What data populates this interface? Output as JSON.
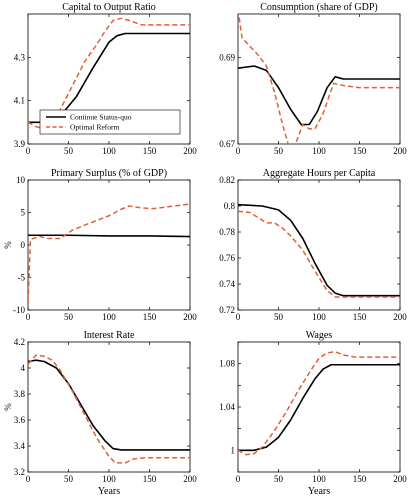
{
  "chart_data": [
    {
      "type": "line",
      "title": "Capital to Output Ratio",
      "xlabel": "",
      "ylabel": "",
      "xlim": [
        0,
        200
      ],
      "ylim": [
        3.9,
        4.5
      ],
      "xticks": [
        0,
        50,
        100,
        150,
        200
      ],
      "yticks": [
        3.9,
        4.1,
        4.3
      ],
      "grid": false,
      "legend": {
        "position": "lower-left",
        "entries": [
          "Continue Status-quo",
          "Optimal Reform"
        ]
      },
      "series": [
        {
          "name": "Continue Status-quo",
          "color": "#000000",
          "style": "solid",
          "points": [
            [
              0,
              4.0
            ],
            [
              20,
              4.0
            ],
            [
              40,
              4.03
            ],
            [
              60,
              4.12
            ],
            [
              80,
              4.25
            ],
            [
              100,
              4.37
            ],
            [
              110,
              4.4
            ],
            [
              120,
              4.41
            ],
            [
              200,
              4.41
            ]
          ]
        },
        {
          "name": "Optimal Reform",
          "color": "#e0603a",
          "style": "dashed",
          "points": [
            [
              0,
              4.0
            ],
            [
              10,
              3.98
            ],
            [
              20,
              3.97
            ],
            [
              30,
              3.99
            ],
            [
              40,
              4.06
            ],
            [
              55,
              4.17
            ],
            [
              70,
              4.28
            ],
            [
              85,
              4.36
            ],
            [
              95,
              4.42
            ],
            [
              105,
              4.47
            ],
            [
              115,
              4.48
            ],
            [
              125,
              4.47
            ],
            [
              140,
              4.45
            ],
            [
              200,
              4.45
            ]
          ]
        }
      ]
    },
    {
      "type": "line",
      "title": "Consumption (share of GDP)",
      "xlabel": "",
      "ylabel": "",
      "xlim": [
        0,
        200
      ],
      "ylim": [
        0.67,
        0.7
      ],
      "xticks": [
        0,
        50,
        100,
        150,
        200
      ],
      "yticks": [
        0.67,
        0.69
      ],
      "grid": false,
      "series": [
        {
          "name": "Continue Status-quo",
          "color": "#000000",
          "style": "solid",
          "points": [
            [
              0,
              0.6875
            ],
            [
              20,
              0.688
            ],
            [
              35,
              0.687
            ],
            [
              50,
              0.683
            ],
            [
              65,
              0.678
            ],
            [
              78,
              0.6745
            ],
            [
              88,
              0.6745
            ],
            [
              98,
              0.6775
            ],
            [
              110,
              0.683
            ],
            [
              120,
              0.6855
            ],
            [
              130,
              0.685
            ],
            [
              145,
              0.685
            ],
            [
              200,
              0.685
            ]
          ]
        },
        {
          "name": "Optimal Reform",
          "color": "#e0603a",
          "style": "dashed",
          "points": [
            [
              0,
              0.701
            ],
            [
              5,
              0.6945
            ],
            [
              15,
              0.6925
            ],
            [
              25,
              0.6905
            ],
            [
              35,
              0.688
            ],
            [
              45,
              0.682
            ],
            [
              55,
              0.6745
            ],
            [
              65,
              0.668
            ],
            [
              72,
              0.6705
            ],
            [
              80,
              0.6745
            ],
            [
              88,
              0.6735
            ],
            [
              95,
              0.6735
            ],
            [
              105,
              0.677
            ],
            [
              118,
              0.684
            ],
            [
              130,
              0.6835
            ],
            [
              150,
              0.683
            ],
            [
              200,
              0.683
            ]
          ]
        }
      ]
    },
    {
      "type": "line",
      "title": "Primary Surplus (% of GDP)",
      "xlabel": "",
      "ylabel": "%",
      "xlim": [
        0,
        200
      ],
      "ylim": [
        -10,
        10
      ],
      "xticks": [
        0,
        50,
        100,
        150,
        200
      ],
      "yticks": [
        -10,
        -5,
        0,
        5,
        10
      ],
      "grid": false,
      "series": [
        {
          "name": "Continue Status-quo",
          "color": "#000000",
          "style": "solid",
          "points": [
            [
              0,
              1.5
            ],
            [
              50,
              1.5
            ],
            [
              100,
              1.4
            ],
            [
              150,
              1.4
            ],
            [
              200,
              1.3
            ]
          ]
        },
        {
          "name": "Optimal Reform",
          "color": "#e0603a",
          "style": "dashed",
          "points": [
            [
              0,
              -8.8
            ],
            [
              1,
              -6
            ],
            [
              3,
              0.8
            ],
            [
              6,
              1.0
            ],
            [
              15,
              1.3
            ],
            [
              25,
              1.0
            ],
            [
              40,
              1.0
            ],
            [
              55,
              2.3
            ],
            [
              75,
              3.3
            ],
            [
              100,
              4.5
            ],
            [
              115,
              5.5
            ],
            [
              125,
              6.0
            ],
            [
              140,
              5.7
            ],
            [
              155,
              5.6
            ],
            [
              180,
              6.0
            ],
            [
              200,
              6.3
            ]
          ]
        }
      ]
    },
    {
      "type": "line",
      "title": "Aggregate Hours per Capita",
      "xlabel": "",
      "ylabel": "",
      "xlim": [
        0,
        200
      ],
      "ylim": [
        0.72,
        0.82
      ],
      "xticks": [
        0,
        50,
        100,
        150,
        200
      ],
      "yticks": [
        0.72,
        0.74,
        0.76,
        0.78,
        0.8,
        0.82
      ],
      "grid": false,
      "series": [
        {
          "name": "Continue Status-quo",
          "color": "#000000",
          "style": "solid",
          "points": [
            [
              0,
              0.801
            ],
            [
              30,
              0.8
            ],
            [
              50,
              0.797
            ],
            [
              65,
              0.789
            ],
            [
              80,
              0.775
            ],
            [
              95,
              0.756
            ],
            [
              110,
              0.739
            ],
            [
              120,
              0.733
            ],
            [
              130,
              0.731
            ],
            [
              200,
              0.731
            ]
          ]
        },
        {
          "name": "Optimal Reform",
          "color": "#e0603a",
          "style": "dashed",
          "points": [
            [
              0,
              0.796
            ],
            [
              15,
              0.795
            ],
            [
              25,
              0.791
            ],
            [
              35,
              0.787
            ],
            [
              45,
              0.787
            ],
            [
              55,
              0.783
            ],
            [
              65,
              0.777
            ],
            [
              80,
              0.766
            ],
            [
              95,
              0.75
            ],
            [
              110,
              0.735
            ],
            [
              120,
              0.73
            ],
            [
              200,
              0.73
            ]
          ]
        }
      ]
    },
    {
      "type": "line",
      "title": "Interest Rate",
      "xlabel": "Years",
      "ylabel": "%",
      "xlim": [
        0,
        200
      ],
      "ylim": [
        3.2,
        4.2
      ],
      "xticks": [
        0,
        50,
        100,
        150,
        200
      ],
      "yticks": [
        3.2,
        3.4,
        3.6,
        3.8,
        4.0,
        4.2
      ],
      "grid": false,
      "series": [
        {
          "name": "Continue Status-quo",
          "color": "#000000",
          "style": "solid",
          "points": [
            [
              0,
              4.05
            ],
            [
              10,
              4.06
            ],
            [
              20,
              4.05
            ],
            [
              35,
              4.0
            ],
            [
              50,
              3.88
            ],
            [
              65,
              3.72
            ],
            [
              80,
              3.56
            ],
            [
              95,
              3.44
            ],
            [
              105,
              3.38
            ],
            [
              115,
              3.37
            ],
            [
              200,
              3.37
            ]
          ]
        },
        {
          "name": "Optimal Reform",
          "color": "#e0603a",
          "style": "dashed",
          "points": [
            [
              0,
              4.03
            ],
            [
              10,
              4.1
            ],
            [
              20,
              4.09
            ],
            [
              30,
              4.06
            ],
            [
              40,
              3.98
            ],
            [
              55,
              3.82
            ],
            [
              70,
              3.64
            ],
            [
              85,
              3.46
            ],
            [
              100,
              3.32
            ],
            [
              108,
              3.27
            ],
            [
              120,
              3.27
            ],
            [
              130,
              3.3
            ],
            [
              145,
              3.31
            ],
            [
              200,
              3.31
            ]
          ]
        }
      ]
    },
    {
      "type": "line",
      "title": "Wages",
      "xlabel": "Years",
      "ylabel": "",
      "xlim": [
        0,
        200
      ],
      "ylim": [
        0.98,
        1.1
      ],
      "xticks": [
        0,
        50,
        100,
        150,
        200
      ],
      "yticks": [
        0.98,
        1.0,
        1.02,
        1.04,
        1.06,
        1.08,
        1.1
      ],
      "ytick_labels": [
        "",
        "1",
        "",
        "1.04",
        "",
        "1.08",
        ""
      ],
      "grid": false,
      "series": [
        {
          "name": "Continue Status-quo",
          "color": "#000000",
          "style": "solid",
          "points": [
            [
              0,
              1.0
            ],
            [
              20,
              1.0
            ],
            [
              35,
              1.003
            ],
            [
              50,
              1.012
            ],
            [
              65,
              1.028
            ],
            [
              80,
              1.048
            ],
            [
              95,
              1.066
            ],
            [
              105,
              1.075
            ],
            [
              115,
              1.079
            ],
            [
              200,
              1.079
            ]
          ]
        },
        {
          "name": "Optimal Reform",
          "color": "#e0603a",
          "style": "dashed",
          "points": [
            [
              0,
              1.0
            ],
            [
              10,
              0.996
            ],
            [
              20,
              0.997
            ],
            [
              30,
              1.003
            ],
            [
              45,
              1.018
            ],
            [
              60,
              1.036
            ],
            [
              75,
              1.056
            ],
            [
              90,
              1.074
            ],
            [
              100,
              1.085
            ],
            [
              110,
              1.09
            ],
            [
              120,
              1.091
            ],
            [
              130,
              1.088
            ],
            [
              145,
              1.086
            ],
            [
              200,
              1.086
            ]
          ]
        }
      ]
    }
  ]
}
